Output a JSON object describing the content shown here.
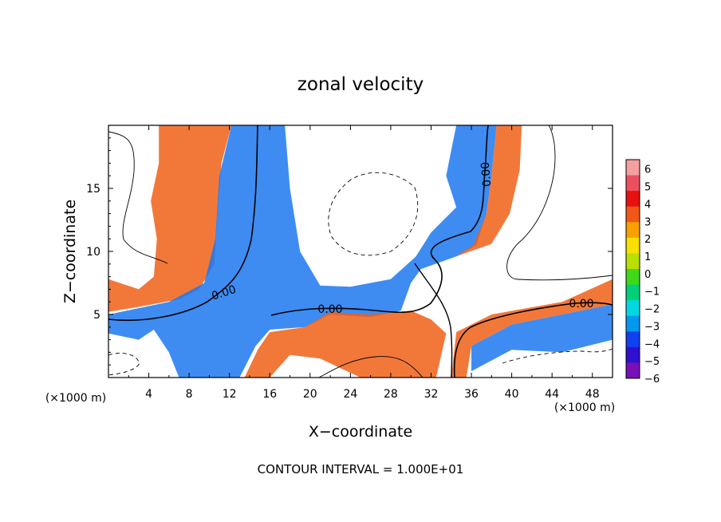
{
  "chart_data": {
    "type": "heatmap",
    "title": "zonal velocity",
    "xlabel": "X−coordinate",
    "ylabel": "Z−coordinate",
    "x_unit_left": "(×1000 m)",
    "x_unit_right": "(×1000 m)",
    "xlim": [
      0,
      50
    ],
    "ylim": [
      0,
      20
    ],
    "xticks": [
      4,
      8,
      12,
      16,
      20,
      24,
      28,
      32,
      36,
      40,
      44,
      48
    ],
    "yticks": [
      5,
      10,
      15
    ],
    "colorbar": {
      "min": -6,
      "max": 6,
      "tick_labels": [
        "6",
        "5",
        "4",
        "3",
        "2",
        "1",
        "0",
        "−1",
        "−2",
        "−3",
        "−4",
        "−5",
        "−6"
      ],
      "colors_top_to_bottom": [
        "#f4a0a0",
        "#ec5060",
        "#e81010",
        "#f05818",
        "#f8a000",
        "#f8e000",
        "#b8e000",
        "#40d818",
        "#00d078",
        "#00d8e0",
        "#0098f0",
        "#1040f0",
        "#3010d0",
        "#7810b8"
      ]
    },
    "contour_labels": [
      "0.00",
      "0.00",
      "0.00",
      "0.00"
    ],
    "contour_interval_text": "CONTOUR INTERVAL = 1.000E+01",
    "bands": [
      {
        "name": "left-plume-positive",
        "points": [
          [
            5,
            20
          ],
          [
            5,
            17
          ],
          [
            4.2,
            14
          ],
          [
            4.8,
            11
          ],
          [
            4.5,
            8
          ],
          [
            3,
            7
          ],
          [
            0,
            7.8
          ],
          [
            0,
            5.2
          ],
          [
            3,
            5.6
          ],
          [
            7,
            6.2
          ],
          [
            9,
            7
          ],
          [
            10.5,
            9
          ],
          [
            10.8,
            13
          ],
          [
            11.2,
            17
          ],
          [
            12.2,
            20
          ]
        ],
        "value": 3
      },
      {
        "name": "left-column-negative",
        "points": [
          [
            12.2,
            20
          ],
          [
            11,
            16
          ],
          [
            10.6,
            11
          ],
          [
            9.5,
            7.5
          ],
          [
            6,
            6
          ],
          [
            0,
            5
          ],
          [
            0,
            3.5
          ],
          [
            3,
            3
          ],
          [
            4.5,
            3.8
          ],
          [
            6,
            2
          ],
          [
            7,
            0
          ],
          [
            13,
            0
          ],
          [
            14.6,
            2.5
          ],
          [
            16,
            3.8
          ],
          [
            19.5,
            4
          ],
          [
            22,
            5
          ],
          [
            26,
            4.8
          ],
          [
            29,
            5.3
          ],
          [
            30,
            7.5
          ],
          [
            31,
            8.6
          ],
          [
            34.5,
            9.6
          ],
          [
            36.5,
            10.5
          ],
          [
            37.5,
            13
          ],
          [
            38,
            16
          ],
          [
            38.5,
            20
          ],
          [
            34.5,
            20
          ],
          [
            33.5,
            16
          ],
          [
            34.5,
            13.5
          ],
          [
            32,
            11.5
          ],
          [
            30.5,
            9.6
          ],
          [
            28,
            7.8
          ],
          [
            24,
            7.2
          ],
          [
            21,
            7.3
          ],
          [
            19,
            10
          ],
          [
            18,
            15
          ],
          [
            17.5,
            20
          ]
        ],
        "value": -3
      },
      {
        "name": "right-upper-positive",
        "points": [
          [
            38.5,
            20
          ],
          [
            38,
            16
          ],
          [
            37.5,
            13
          ],
          [
            36.2,
            10.5
          ],
          [
            34.5,
            9.6
          ],
          [
            38,
            10.6
          ],
          [
            39.8,
            13
          ],
          [
            40.8,
            16.5
          ],
          [
            41,
            20
          ]
        ],
        "value": 3
      },
      {
        "name": "lower-positive",
        "points": [
          [
            14.8,
            2.2
          ],
          [
            16,
            3.6
          ],
          [
            19.5,
            4
          ],
          [
            22,
            5.2
          ],
          [
            26,
            5
          ],
          [
            30,
            5.3
          ],
          [
            32,
            4.6
          ],
          [
            33.5,
            3.5
          ],
          [
            32.5,
            0
          ],
          [
            25,
            0
          ],
          [
            21,
            1.5
          ],
          [
            18,
            1.8
          ],
          [
            16,
            0
          ],
          [
            13.5,
            0
          ]
        ],
        "value": 3
      },
      {
        "name": "right-lower-positive",
        "points": [
          [
            34.5,
            3.6
          ],
          [
            38,
            5
          ],
          [
            45,
            6
          ],
          [
            50,
            7.8
          ],
          [
            50,
            5.8
          ],
          [
            45,
            5
          ],
          [
            40,
            4.2
          ],
          [
            36,
            2.5
          ],
          [
            35.5,
            0
          ],
          [
            34,
            0
          ]
        ],
        "value": 3
      },
      {
        "name": "right-lower-negative",
        "points": [
          [
            36,
            2.5
          ],
          [
            40,
            4.2
          ],
          [
            45,
            5
          ],
          [
            50,
            5.8
          ],
          [
            50,
            3
          ],
          [
            45,
            2
          ],
          [
            40,
            2.2
          ],
          [
            36,
            0.5
          ]
        ],
        "value": -3
      }
    ]
  }
}
